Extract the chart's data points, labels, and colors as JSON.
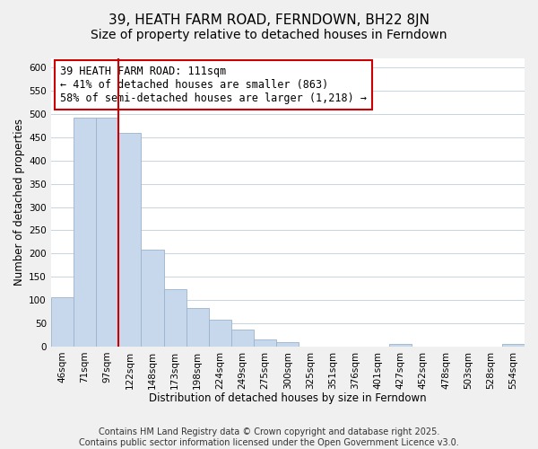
{
  "title": "39, HEATH FARM ROAD, FERNDOWN, BH22 8JN",
  "subtitle": "Size of property relative to detached houses in Ferndown",
  "xlabel": "Distribution of detached houses by size in Ferndown",
  "ylabel": "Number of detached properties",
  "bin_labels": [
    "46sqm",
    "71sqm",
    "97sqm",
    "122sqm",
    "148sqm",
    "173sqm",
    "198sqm",
    "224sqm",
    "249sqm",
    "275sqm",
    "300sqm",
    "325sqm",
    "351sqm",
    "376sqm",
    "401sqm",
    "427sqm",
    "452sqm",
    "478sqm",
    "503sqm",
    "528sqm",
    "554sqm"
  ],
  "bar_heights": [
    106,
    493,
    493,
    460,
    208,
    124,
    82,
    58,
    36,
    15,
    10,
    0,
    0,
    0,
    0,
    5,
    0,
    0,
    0,
    0,
    5
  ],
  "bar_color": "#c8d8ec",
  "bar_edge_color": "#9ab4cc",
  "vline_color": "#cc0000",
  "annotation_title": "39 HEATH FARM ROAD: 111sqm",
  "annotation_line1": "← 41% of detached houses are smaller (863)",
  "annotation_line2": "58% of semi-detached houses are larger (1,218) →",
  "annotation_box_color": "#ffffff",
  "annotation_box_edge": "#cc0000",
  "ylim": [
    0,
    620
  ],
  "yticks": [
    0,
    50,
    100,
    150,
    200,
    250,
    300,
    350,
    400,
    450,
    500,
    550,
    600
  ],
  "footer_line1": "Contains HM Land Registry data © Crown copyright and database right 2025.",
  "footer_line2": "Contains public sector information licensed under the Open Government Licence v3.0.",
  "background_color": "#f0f0f0",
  "plot_bg_color": "#ffffff",
  "grid_color": "#c8d4e0",
  "title_fontsize": 11,
  "axis_label_fontsize": 8.5,
  "tick_fontsize": 7.5,
  "footer_fontsize": 7,
  "annotation_fontsize": 8.5
}
